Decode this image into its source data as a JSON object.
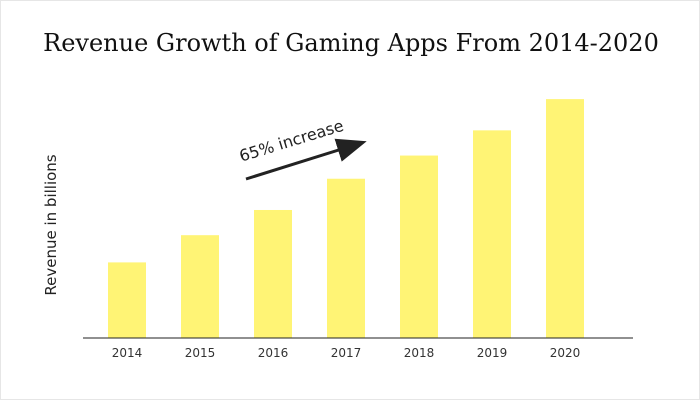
{
  "chart_data": {
    "type": "bar",
    "title": "Revenue Growth of Gaming Apps From 2014-2020",
    "xlabel": "",
    "ylabel": "Revenue in billions",
    "categories": [
      "2014",
      "2015",
      "2016",
      "2017",
      "2018",
      "2019",
      "2020"
    ],
    "values": [
      7.5,
      10.2,
      12.7,
      15.8,
      18.1,
      20.6,
      23.7
    ],
    "ylim": [
      0,
      25
    ],
    "grid": false,
    "legend": "none",
    "bar_color": "#FFF475",
    "annotation": {
      "text": "65% increase",
      "arrow": true
    }
  }
}
